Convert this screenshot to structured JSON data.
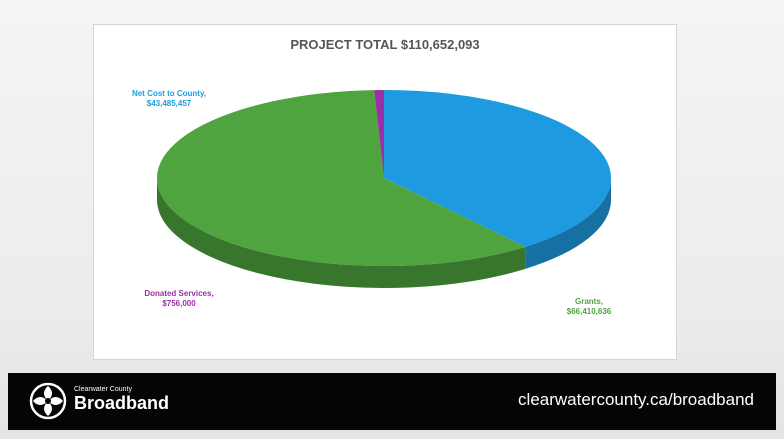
{
  "chart_data": {
    "type": "pie",
    "title": "PROJECT TOTAL $110,652,093",
    "slices": [
      {
        "label": "Net Cost to County,",
        "value_label": "$43,485,457",
        "value": 43485457,
        "color": "#1e9be0"
      },
      {
        "label": "Grants,",
        "value_label": "$66,410,636",
        "value": 66410636,
        "color": "#4fa43f"
      },
      {
        "label": "Donated Services,",
        "value_label": "$756,000",
        "value": 756000,
        "color": "#9b2fa8"
      }
    ],
    "legend": "none"
  },
  "footer": {
    "brand_small": "Clearwater County",
    "brand_big": "Broadband",
    "url": "clearwatercounty.ca/broadband",
    "logo_icon": "clearwater-swirl-icon"
  }
}
